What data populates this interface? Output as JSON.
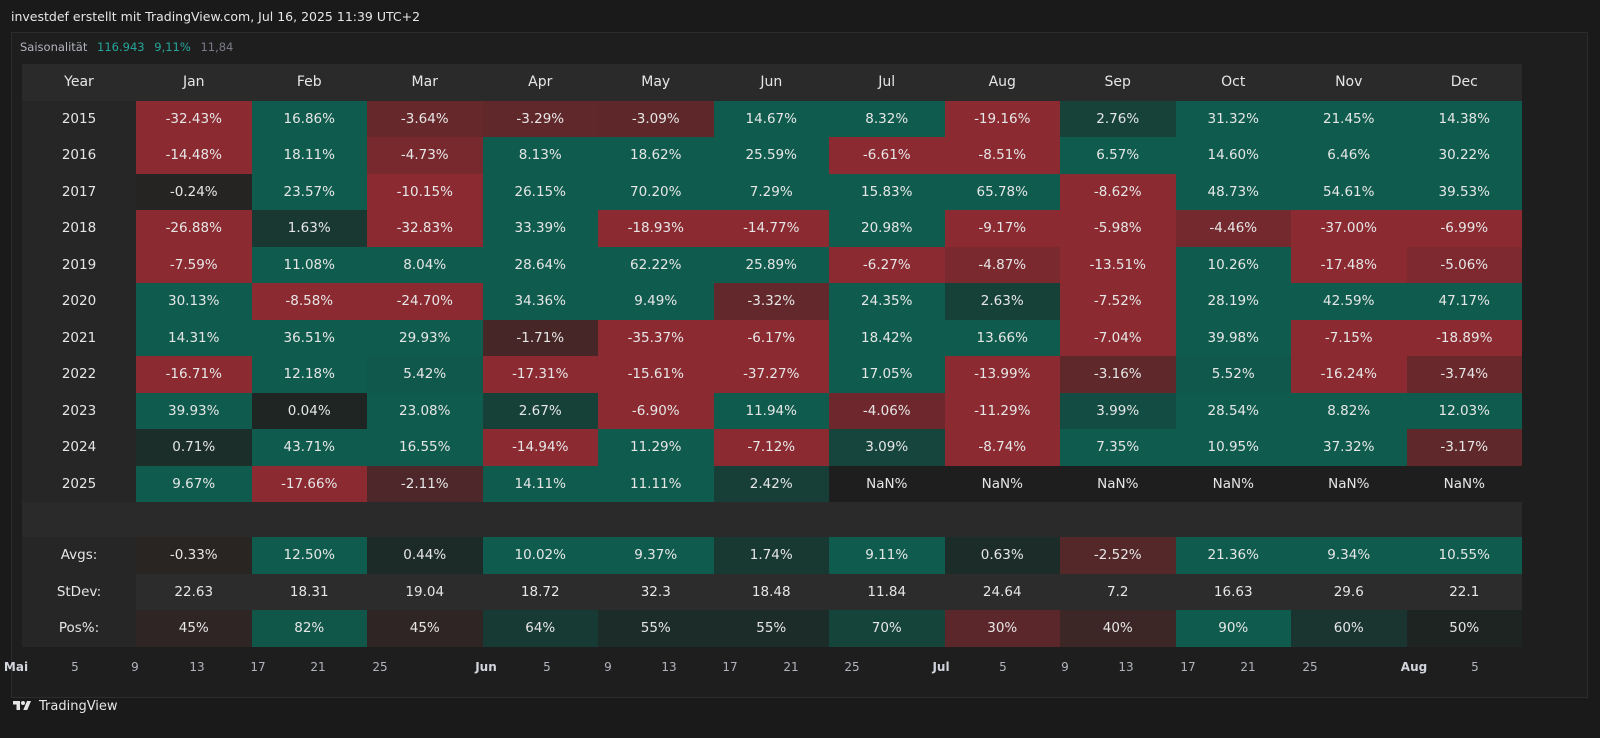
{
  "header": {
    "text": "investdef erstellt mit TradingView.com, Jul 16, 2025 11:39 UTC+2"
  },
  "legend": {
    "title": "Saisonalität",
    "v1": "116.943",
    "v2": "9,11%",
    "v3": "11,84"
  },
  "table": {
    "year_label": "Year",
    "months": [
      "Jan",
      "Feb",
      "Mar",
      "Apr",
      "May",
      "Jun",
      "Jul",
      "Aug",
      "Sep",
      "Oct",
      "Nov",
      "Dec"
    ],
    "rows": [
      {
        "year": "2015",
        "values": [
          "-32.43%",
          "16.86%",
          "-3.64%",
          "-3.29%",
          "-3.09%",
          "14.67%",
          "8.32%",
          "-19.16%",
          "2.76%",
          "31.32%",
          "21.45%",
          "14.38%"
        ]
      },
      {
        "year": "2016",
        "values": [
          "-14.48%",
          "18.11%",
          "-4.73%",
          "8.13%",
          "18.62%",
          "25.59%",
          "-6.61%",
          "-8.51%",
          "6.57%",
          "14.60%",
          "6.46%",
          "30.22%"
        ]
      },
      {
        "year": "2017",
        "values": [
          "-0.24%",
          "23.57%",
          "-10.15%",
          "26.15%",
          "70.20%",
          "7.29%",
          "15.83%",
          "65.78%",
          "-8.62%",
          "48.73%",
          "54.61%",
          "39.53%"
        ]
      },
      {
        "year": "2018",
        "values": [
          "-26.88%",
          "1.63%",
          "-32.83%",
          "33.39%",
          "-18.93%",
          "-14.77%",
          "20.98%",
          "-9.17%",
          "-5.98%",
          "-4.46%",
          "-37.00%",
          "-6.99%"
        ]
      },
      {
        "year": "2019",
        "values": [
          "-7.59%",
          "11.08%",
          "8.04%",
          "28.64%",
          "62.22%",
          "25.89%",
          "-6.27%",
          "-4.87%",
          "-13.51%",
          "10.26%",
          "-17.48%",
          "-5.06%"
        ]
      },
      {
        "year": "2020",
        "values": [
          "30.13%",
          "-8.58%",
          "-24.70%",
          "34.36%",
          "9.49%",
          "-3.32%",
          "24.35%",
          "2.63%",
          "-7.52%",
          "28.19%",
          "42.59%",
          "47.17%"
        ]
      },
      {
        "year": "2021",
        "values": [
          "14.31%",
          "36.51%",
          "29.93%",
          "-1.71%",
          "-35.37%",
          "-6.17%",
          "18.42%",
          "13.66%",
          "-7.04%",
          "39.98%",
          "-7.15%",
          "-18.89%"
        ]
      },
      {
        "year": "2022",
        "values": [
          "-16.71%",
          "12.18%",
          "5.42%",
          "-17.31%",
          "-15.61%",
          "-37.27%",
          "17.05%",
          "-13.99%",
          "-3.16%",
          "5.52%",
          "-16.24%",
          "-3.74%"
        ]
      },
      {
        "year": "2023",
        "values": [
          "39.93%",
          "0.04%",
          "23.08%",
          "2.67%",
          "-6.90%",
          "11.94%",
          "-4.06%",
          "-11.29%",
          "3.99%",
          "28.54%",
          "8.82%",
          "12.03%"
        ]
      },
      {
        "year": "2024",
        "values": [
          "0.71%",
          "43.71%",
          "16.55%",
          "-14.94%",
          "11.29%",
          "-7.12%",
          "3.09%",
          "-8.74%",
          "7.35%",
          "10.95%",
          "37.32%",
          "-3.17%"
        ]
      },
      {
        "year": "2025",
        "values": [
          "9.67%",
          "-17.66%",
          "-2.11%",
          "14.11%",
          "11.11%",
          "2.42%",
          "NaN%",
          "NaN%",
          "NaN%",
          "NaN%",
          "NaN%",
          "NaN%"
        ]
      }
    ],
    "stats": [
      {
        "label": "Avgs:",
        "values": [
          "-0.33%",
          "12.50%",
          "0.44%",
          "10.02%",
          "9.37%",
          "1.74%",
          "9.11%",
          "0.63%",
          "-2.52%",
          "21.36%",
          "9.34%",
          "10.55%"
        ]
      },
      {
        "label": "StDev:",
        "values": [
          "22.63",
          "18.31",
          "19.04",
          "18.72",
          "32.3",
          "18.48",
          "11.84",
          "24.64",
          "7.2",
          "16.63",
          "29.6",
          "22.1"
        ]
      },
      {
        "label": "Pos%:",
        "values": [
          "45%",
          "82%",
          "45%",
          "64%",
          "55%",
          "55%",
          "70%",
          "30%",
          "40%",
          "90%",
          "60%",
          "50%"
        ]
      }
    ]
  },
  "xaxis": {
    "ticks": [
      {
        "label": "Mai",
        "bold": true
      },
      {
        "label": "5",
        "bold": false
      },
      {
        "label": "9",
        "bold": false
      },
      {
        "label": "13",
        "bold": false
      },
      {
        "label": "17",
        "bold": false
      },
      {
        "label": "21",
        "bold": false
      },
      {
        "label": "25",
        "bold": false
      },
      {
        "label": "Jun",
        "bold": true
      },
      {
        "label": "5",
        "bold": false
      },
      {
        "label": "9",
        "bold": false
      },
      {
        "label": "13",
        "bold": false
      },
      {
        "label": "17",
        "bold": false
      },
      {
        "label": "21",
        "bold": false
      },
      {
        "label": "25",
        "bold": false
      },
      {
        "label": "Jul",
        "bold": true
      },
      {
        "label": "5",
        "bold": false
      },
      {
        "label": "9",
        "bold": false
      },
      {
        "label": "13",
        "bold": false
      },
      {
        "label": "17",
        "bold": false
      },
      {
        "label": "21",
        "bold": false
      },
      {
        "label": "25",
        "bold": false
      },
      {
        "label": "Aug",
        "bold": true
      },
      {
        "label": "5",
        "bold": false
      }
    ]
  },
  "footer": {
    "brand": "TradingView",
    "logo_icon": "tradingview-logo-icon"
  },
  "colors": {
    "positive": "#0f5c4e",
    "negative": "#8b2a31",
    "neutral": "#1e2422"
  }
}
